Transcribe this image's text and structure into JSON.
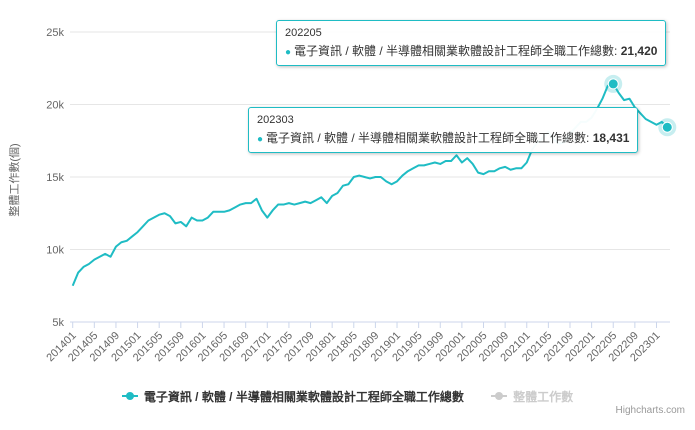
{
  "chart_data": {
    "type": "line",
    "ylabel": "整體工作數(個)",
    "ylim": [
      5000,
      25000
    ],
    "y_ticks": [
      5000,
      10000,
      15000,
      20000,
      25000
    ],
    "y_tick_labels": [
      "5k",
      "10k",
      "15k",
      "20k",
      "25k"
    ],
    "x_tick_labels": [
      "201401",
      "201405",
      "201409",
      "201501",
      "201505",
      "201509",
      "201601",
      "201605",
      "201609",
      "201701",
      "201705",
      "201709",
      "201801",
      "201805",
      "201809",
      "201901",
      "201905",
      "201909",
      "202001",
      "202005",
      "202009",
      "202101",
      "202105",
      "202109",
      "202201",
      "202205",
      "202209",
      "202301"
    ],
    "grid": "horizontal",
    "legend_position": "bottom",
    "series": [
      {
        "name": "電子資訊 / 軟體 / 半導體相關業軟體設計工程師全職工作總數",
        "color": "#1fbcc4",
        "visible": true,
        "x": [
          "201401",
          "201402",
          "201403",
          "201404",
          "201405",
          "201406",
          "201407",
          "201408",
          "201409",
          "201410",
          "201411",
          "201412",
          "201501",
          "201502",
          "201503",
          "201504",
          "201505",
          "201506",
          "201507",
          "201508",
          "201509",
          "201510",
          "201511",
          "201512",
          "201601",
          "201602",
          "201603",
          "201604",
          "201605",
          "201606",
          "201607",
          "201608",
          "201609",
          "201610",
          "201611",
          "201612",
          "201701",
          "201702",
          "201703",
          "201704",
          "201705",
          "201706",
          "201707",
          "201708",
          "201709",
          "201710",
          "201711",
          "201712",
          "201801",
          "201802",
          "201803",
          "201804",
          "201805",
          "201806",
          "201807",
          "201808",
          "201809",
          "201810",
          "201811",
          "201812",
          "201901",
          "201902",
          "201903",
          "201904",
          "201905",
          "201906",
          "201907",
          "201908",
          "201909",
          "201910",
          "201911",
          "201912",
          "202001",
          "202002",
          "202003",
          "202004",
          "202005",
          "202006",
          "202007",
          "202008",
          "202009",
          "202010",
          "202011",
          "202012",
          "202101",
          "202102",
          "202103",
          "202104",
          "202105",
          "202106",
          "202107",
          "202108",
          "202109",
          "202110",
          "202111",
          "202112",
          "202201",
          "202202",
          "202203",
          "202204",
          "202205",
          "202206",
          "202207",
          "202208",
          "202209",
          "202210",
          "202211",
          "202212",
          "202301",
          "202302",
          "202303"
        ],
        "values": [
          7500,
          8400,
          8800,
          9000,
          9300,
          9500,
          9700,
          9500,
          10200,
          10500,
          10600,
          10900,
          11200,
          11600,
          12000,
          12200,
          12400,
          12500,
          12300,
          11800,
          11900,
          11600,
          12200,
          12000,
          12000,
          12200,
          12600,
          12600,
          12600,
          12700,
          12900,
          13100,
          13200,
          13200,
          13500,
          12700,
          12200,
          12700,
          13100,
          13100,
          13200,
          13100,
          13200,
          13300,
          13200,
          13400,
          13600,
          13200,
          13700,
          13900,
          14400,
          14500,
          15000,
          15100,
          15000,
          14900,
          15000,
          15000,
          14700,
          14500,
          14700,
          15100,
          15400,
          15600,
          15800,
          15800,
          15900,
          16000,
          15900,
          16100,
          16100,
          16500,
          16000,
          16300,
          15900,
          15300,
          15200,
          15400,
          15400,
          15600,
          15700,
          15500,
          15600,
          15600,
          16000,
          16900,
          17400,
          17700,
          18100,
          17600,
          17300,
          17400,
          18000,
          18400,
          18800,
          18800,
          19100,
          19700,
          20400,
          21300,
          21420,
          20800,
          20300,
          20400,
          19800,
          19400,
          19000,
          18800,
          18600,
          18800,
          18431
        ]
      },
      {
        "name": "整體工作數",
        "color": "#cccccc",
        "visible": false
      }
    ]
  },
  "tooltips": [
    {
      "date": "202205",
      "label": "電子資訊 / 軟體 / 半導體相關業軟體設計工程師全職工作總數: ",
      "value": "21,420"
    },
    {
      "date": "202303",
      "label": "電子資訊 / 軟體 / 半導體相關業軟體設計工程師全職工作總數: ",
      "value": "18,431"
    }
  ],
  "credits": "Highcharts.com"
}
